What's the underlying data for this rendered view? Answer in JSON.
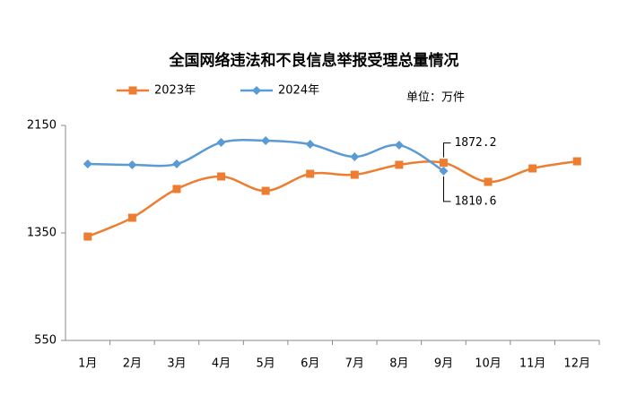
{
  "chart_data": {
    "type": "line",
    "title": "全国网络违法和不良信息举报受理总量情况",
    "unit": "单位：万件",
    "categories": [
      "1月",
      "2月",
      "3月",
      "4月",
      "5月",
      "6月",
      "7月",
      "8月",
      "9月",
      "10月",
      "11月",
      "12月"
    ],
    "series": [
      {
        "name": "2023年",
        "color": "#ed7d31",
        "marker": "square",
        "label_index": 8,
        "values": [
          1323,
          1463,
          1677,
          1770,
          1663,
          1790,
          1783,
          1857,
          1872.2,
          1730,
          1830,
          1883
        ]
      },
      {
        "name": "2024年",
        "color": "#5b9bd5",
        "marker": "diamond",
        "label_index": 8,
        "values": [
          1863,
          1857,
          1863,
          2023,
          2037,
          2010,
          1917,
          2003,
          1810.6,
          null,
          null,
          null
        ]
      }
    ],
    "ylim": [
      550,
      2150
    ],
    "yticks": [
      550,
      1350,
      2150
    ],
    "grid": false
  }
}
